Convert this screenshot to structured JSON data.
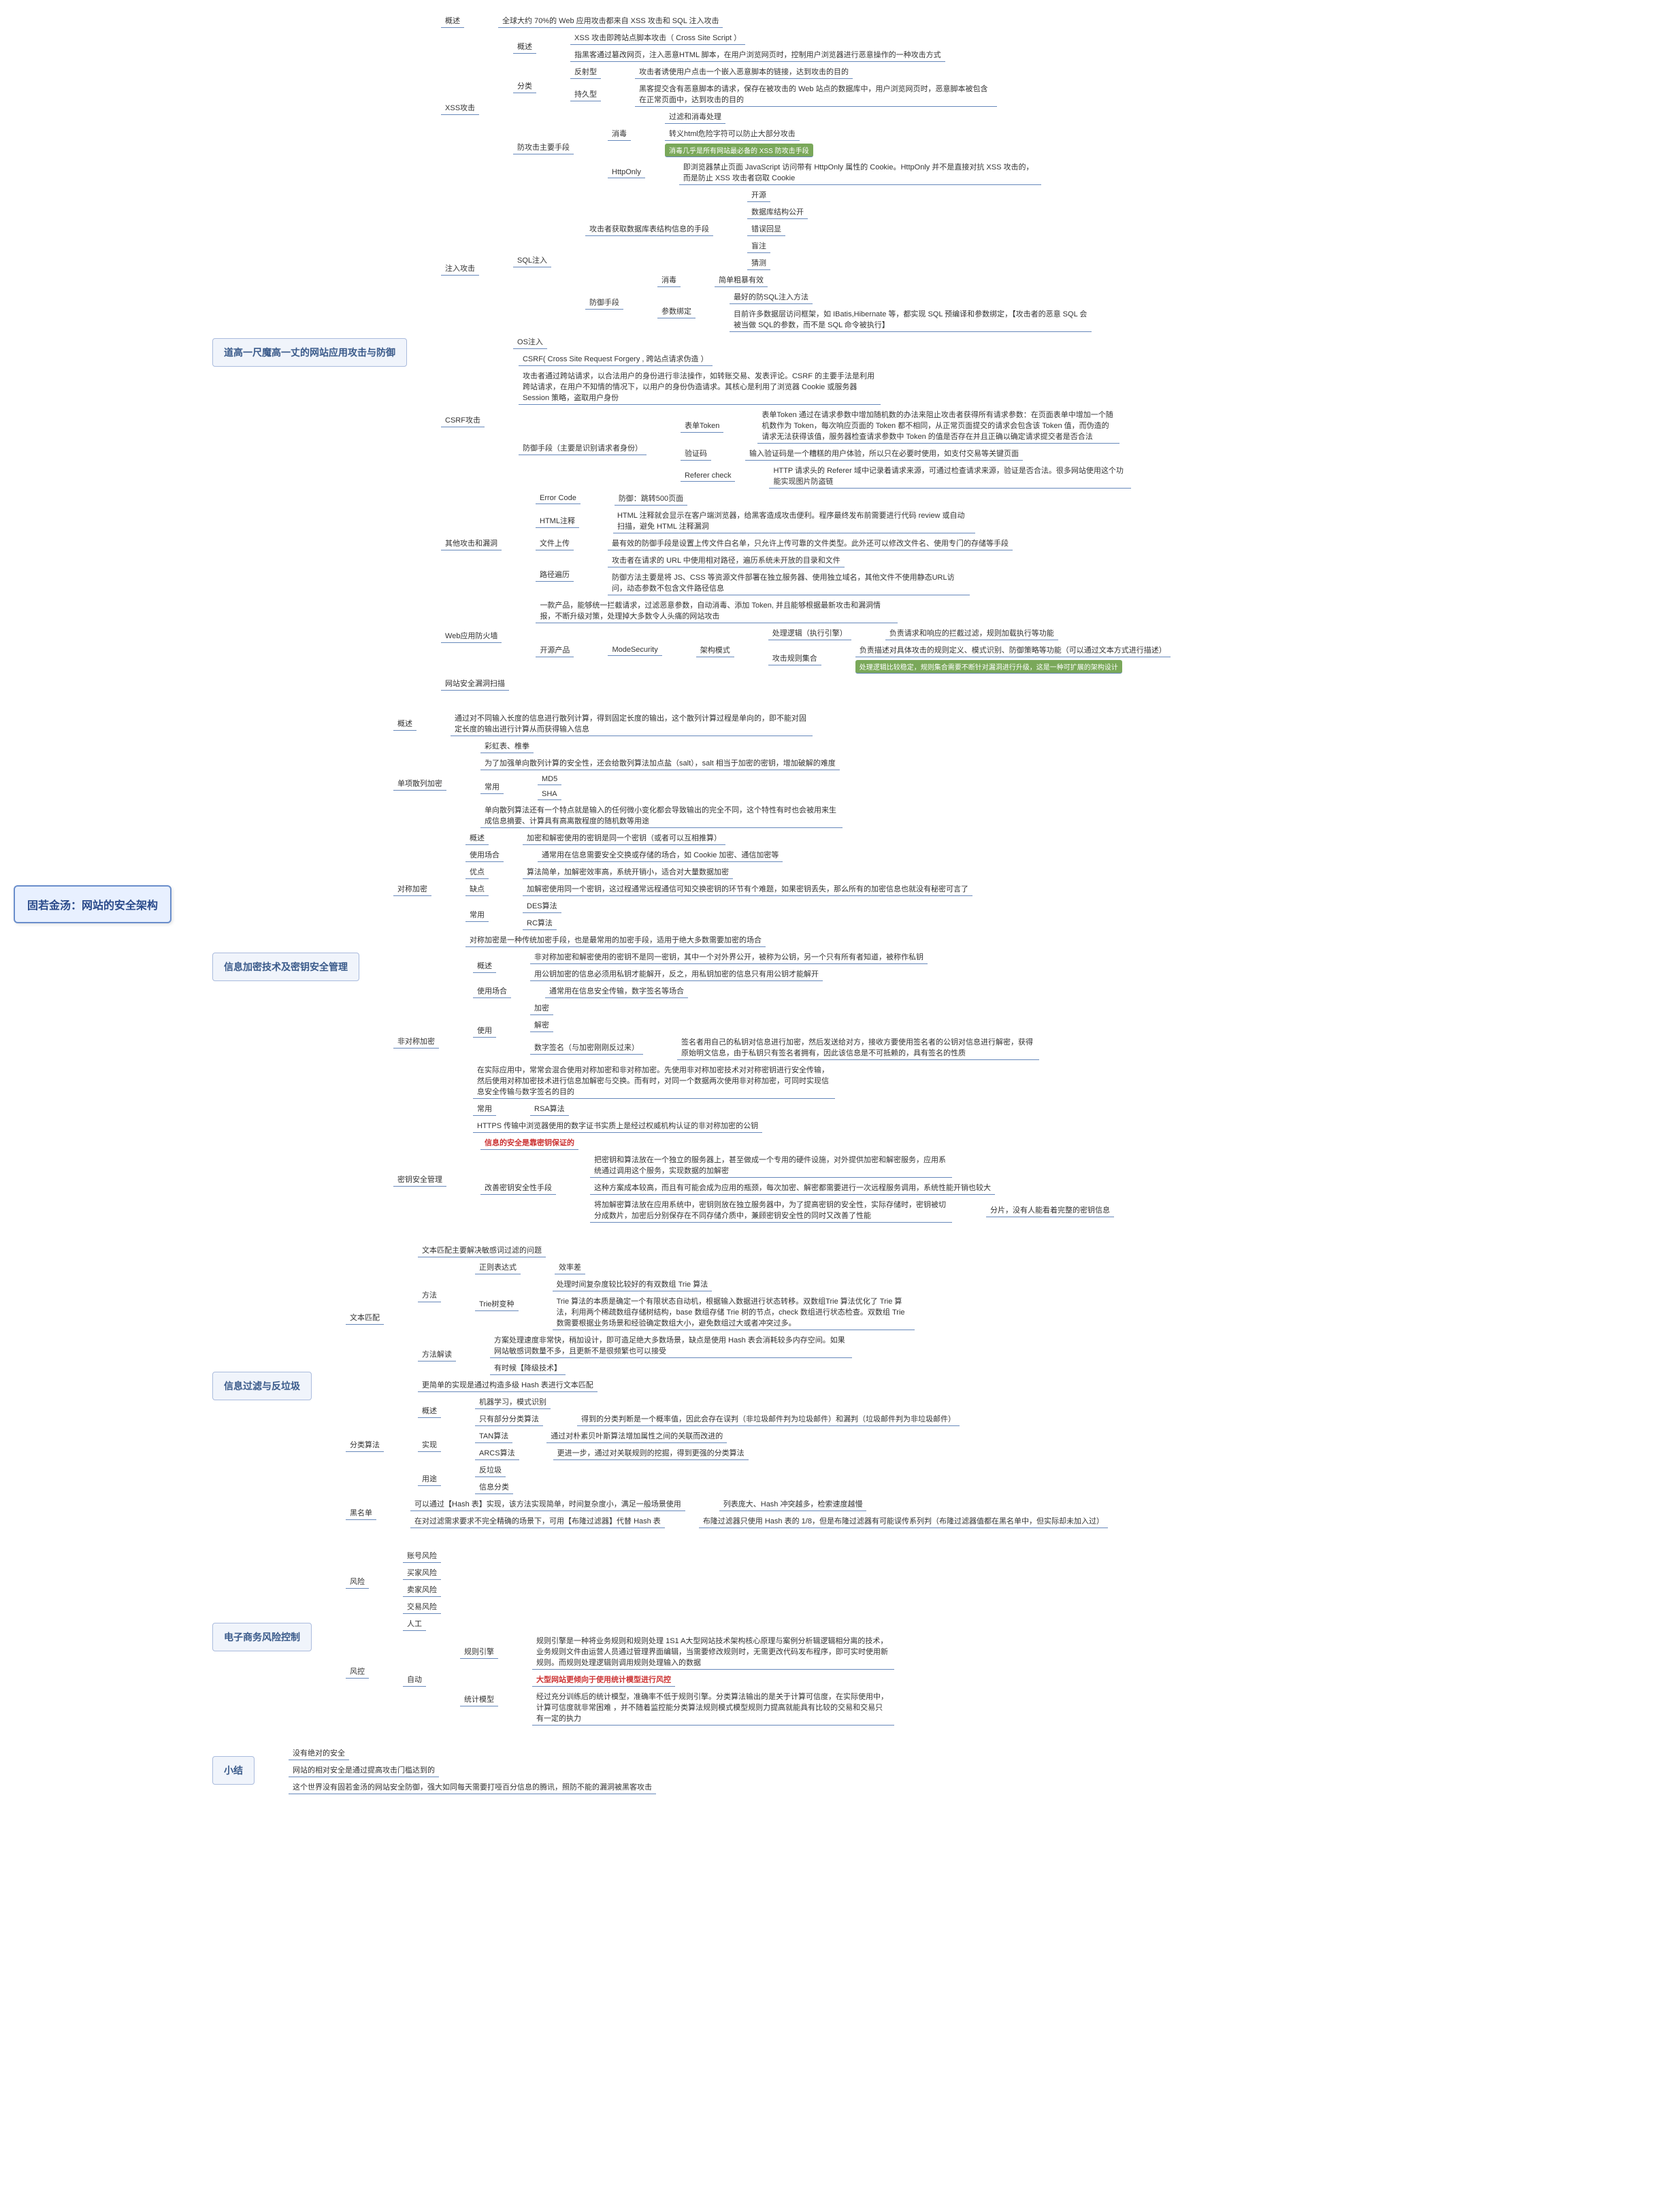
{
  "root": "固若金汤：网站的安全架构",
  "colors": {
    "root_border": "#6a8ecb",
    "root_bg": "#e8f0ff",
    "section_border": "#aabbdd",
    "section_bg": "#f0f4fb",
    "line": "#6688bb",
    "green_tag": "#7aa85a",
    "red_text": "#cc3333"
  },
  "sections": [
    {
      "title": "道高一尺魔高一丈的网站应用攻击与防御",
      "children": [
        {
          "label": "概述",
          "children": [
            {
              "label": "全球大约 70%的 Web 应用攻击都来自 XSS 攻击和 SQL 注入攻击"
            }
          ]
        },
        {
          "label": "XSS攻击",
          "children": [
            {
              "label": "概述",
              "children": [
                {
                  "label": "XSS 攻击即跨站点脚本攻击（ Cross Site Script ）"
                },
                {
                  "label": "指黑客通过篡改网页，注入恶意HTML 脚本，在用户浏览网页时，控制用户浏览器进行恶意操作的一种攻击方式"
                }
              ]
            },
            {
              "label": "分类",
              "children": [
                {
                  "label": "反射型",
                  "children": [
                    {
                      "label": "攻击者诱使用户点击一个嵌入恶意脚本的链接，达到攻击的目的"
                    }
                  ]
                },
                {
                  "label": "持久型",
                  "children": [
                    {
                      "label": "黑客提交含有恶意脚本的请求，保存在被攻击的 Web 站点的数据库中，用户浏览网页时，恶意脚本被包含在正常页面中，达到攻击的目的"
                    }
                  ]
                }
              ]
            },
            {
              "label": "防攻击主要手段",
              "children": [
                {
                  "label": "消毒",
                  "children": [
                    {
                      "label": "过滤和消毒处理"
                    },
                    {
                      "label": "转义html危险字符可以防止大部分攻击"
                    },
                    {
                      "label": "消毒几乎是所有网站最必备的 XSS 防攻击手段",
                      "class": "highlight-green"
                    }
                  ]
                },
                {
                  "label": "HttpOnly",
                  "children": [
                    {
                      "label": "即浏览器禁止页面 JavaScript 访问带有 HttpOnly 属性的 Cookie。HttpOnly 并不是直接对抗 XSS 攻击的，而是防止 XSS 攻击者窃取 Cookie"
                    }
                  ]
                }
              ]
            }
          ]
        },
        {
          "label": "注入攻击",
          "children": [
            {
              "label": "SQL注入",
              "children": [
                {
                  "label": "攻击者获取数据库表结构信息的手段",
                  "children": [
                    {
                      "label": "开源"
                    },
                    {
                      "label": "数据库结构公开"
                    },
                    {
                      "label": "错误回显"
                    },
                    {
                      "label": "盲注"
                    },
                    {
                      "label": "猜测"
                    }
                  ]
                },
                {
                  "label": "防御手段",
                  "children": [
                    {
                      "label": "消毒",
                      "children": [
                        {
                          "label": "简单粗暴有效"
                        }
                      ]
                    },
                    {
                      "label": "参数绑定",
                      "children": [
                        {
                          "label": "最好的防SQL注入方法"
                        },
                        {
                          "label": "目前许多数据层访问框架，如 IBatis,Hibernate 等，都实现 SQL 预编译和参数绑定，【攻击者的恶意 SQL 会被当做 SQL的参数，而不是 SQL 命令被执行】"
                        }
                      ]
                    }
                  ]
                }
              ]
            },
            {
              "label": "OS注入"
            }
          ]
        },
        {
          "label": "CSRF攻击",
          "children": [
            {
              "label": "CSRF( Cross Site Request Forgery , 跨站点请求伪造 ）"
            },
            {
              "label": "攻击者通过跨站请求，以合法用户的身份进行非法操作，如转账交易、发表评论。CSRF 的主要手法是利用跨站请求，在用户不知情的情况下，以用户的身份伪造请求。其核心是利用了浏览器 Cookie 或服务器 Session 策略，盗取用户身份"
            },
            {
              "label": "防御手段（主要是识别请求者身份）",
              "children": [
                {
                  "label": "表单Token",
                  "children": [
                    {
                      "label": "表单Token 通过在请求参数中增加随机数的办法来阻止攻击者获得所有请求参数：在页面表单中增加一个随机数作为 Token，每次响应页面的 Token 都不相同，从正常页面提交的请求会包含该 Token 值，而伪造的请求无法获得该值，服务器检查请求参数中 Token 的值是否存在并且正确以确定请求提交者是否合法"
                    }
                  ]
                },
                {
                  "label": "验证码",
                  "children": [
                    {
                      "label": "输入验证码是一个糟糕的用户体验，所以只在必要时使用，如支付交易等关键页面"
                    }
                  ]
                },
                {
                  "label": "Referer check",
                  "children": [
                    {
                      "label": "HTTP 请求头的 Referer 域中记录着请求来源，可通过检查请求来源，验证是否合法。很多网站使用这个功能实现图片防盗链"
                    }
                  ]
                }
              ]
            }
          ]
        },
        {
          "label": "其他攻击和漏洞",
          "children": [
            {
              "label": "Error Code",
              "children": [
                {
                  "label": "防御：跳转500页面"
                }
              ]
            },
            {
              "label": "HTML注释",
              "children": [
                {
                  "label": "HTML 注释就会显示在客户端浏览器，给黑客造成攻击便利。程序最终发布前需要进行代码 review 或自动扫描，避免 HTML 注释漏洞"
                }
              ]
            },
            {
              "label": "文件上传",
              "children": [
                {
                  "label": "最有效的防御手段是设置上传文件白名单，只允许上传可靠的文件类型。此外还可以修改文件名、使用专门的存储等手段"
                }
              ]
            },
            {
              "label": "路径遍历",
              "children": [
                {
                  "label": "攻击者在请求的 URL 中使用相对路径，遍历系统未开放的目录和文件"
                },
                {
                  "label": "防御方法主要是将 JS、CSS 等资源文件部署在独立服务器、使用独立域名，其他文件不使用静态URL访问，动态参数不包含文件路径信息"
                }
              ]
            }
          ]
        },
        {
          "label": "Web应用防火墙",
          "children": [
            {
              "label": "一款产品，能够统一拦截请求，过滤恶意参数，自动消毒、添加 Token, 并且能够根据最新攻击和漏洞情报，不断升级对策，处理掉大多数令人头痛的网站攻击"
            },
            {
              "label": "开源产品",
              "children": [
                {
                  "label": "ModeSecurity",
                  "children": [
                    {
                      "label": "架构模式",
                      "children": [
                        {
                          "label": "处理逻辑（执行引擎）",
                          "children": [
                            {
                              "label": "负责请求和响应的拦截过滤，规则加载执行等功能"
                            }
                          ]
                        },
                        {
                          "label": "攻击规则集合",
                          "children": [
                            {
                              "label": "负责描述对具体攻击的规则定义、模式识别、防御策略等功能（可以通过文本方式进行描述）"
                            },
                            {
                              "label": "处理逻辑比较稳定，规则集合需要不断针对漏洞进行升级，这是一种可扩展的架构设计",
                              "class": "highlight-green"
                            }
                          ]
                        }
                      ]
                    }
                  ]
                }
              ]
            }
          ]
        },
        {
          "label": "网站安全漏洞扫描"
        }
      ]
    },
    {
      "title": "信息加密技术及密钥安全管理",
      "children": [
        {
          "label": "概述",
          "children": [
            {
              "label": "通过对不同输入长度的信息进行散列计算，得到固定长度的输出，这个散列计算过程是单向的，即不能对固定长度的输出进行计算从而获得输入信息"
            }
          ]
        },
        {
          "label": "单项散列加密",
          "children": [
            {
              "label": "彩虹表、椎拳"
            },
            {
              "label": "为了加强单向散列计算的安全性，还会给散列算法加点盐（salt），salt 相当于加密的密钥，增加破解的难度"
            },
            {
              "label": "常用",
              "children": [
                {
                  "label": "MD5"
                },
                {
                  "label": "SHA"
                }
              ]
            },
            {
              "label": "单向散列算法还有一个特点就是输入的任何微小变化都会导致输出的完全不同，这个特性有时也会被用来生成信息摘要、计算具有高离散程度的随机数等用途"
            }
          ]
        },
        {
          "label": "对称加密",
          "children": [
            {
              "label": "概述",
              "children": [
                {
                  "label": "加密和解密使用的密钥是同一个密钥（或者可以互相推算）"
                }
              ]
            },
            {
              "label": "使用场合",
              "children": [
                {
                  "label": "通常用在信息需要安全交换或存储的场合，如 Cookie 加密、通信加密等"
                }
              ]
            },
            {
              "label": "优点",
              "children": [
                {
                  "label": "算法简单，加解密效率高，系统开销小，适合对大量数据加密"
                }
              ]
            },
            {
              "label": "缺点",
              "children": [
                {
                  "label": "加解密使用同一个密钥，这过程通常远程通信可知交换密钥的环节有个难题，如果密钥丢失，那么所有的加密信息也就没有秘密可言了"
                }
              ]
            },
            {
              "label": "常用",
              "children": [
                {
                  "label": "DES算法"
                },
                {
                  "label": "RC算法"
                }
              ]
            },
            {
              "label": "对称加密是一种传统加密手段，也是最常用的加密手段，适用于绝大多数需要加密的场合"
            }
          ]
        },
        {
          "label": "非对称加密",
          "children": [
            {
              "label": "概述",
              "children": [
                {
                  "label": "非对称加密和解密使用的密钥不是同一密钥，其中一个对外界公开，被称为公钥，另一个只有所有者知道，被称作私钥"
                },
                {
                  "label": "用公钥加密的信息必须用私钥才能解开，反之，用私钥加密的信息只有用公钥才能解开"
                }
              ]
            },
            {
              "label": "使用场合",
              "children": [
                {
                  "label": "通常用在信息安全传输，数字签名等场合"
                }
              ]
            },
            {
              "label": "使用",
              "children": [
                {
                  "label": "加密"
                },
                {
                  "label": "解密"
                },
                {
                  "label": "数字签名（与加密刚刚反过来）",
                  "children": [
                    {
                      "label": "签名者用自己的私钥对信息进行加密，然后发送给对方，接收方要使用签名者的公钥对信息进行解密，获得原始明文信息，由于私钥只有签名者拥有，因此该信息是不可抵赖的，具有签名的性质"
                    }
                  ]
                }
              ]
            },
            {
              "label": "在实际应用中，常常会混合使用对称加密和非对称加密。先使用非对称加密技术对对称密钥进行安全传输，然后使用对称加密技术进行信息加解密与交换。而有时，对同一个数据两次使用非对称加密，可同时实现信息安全传输与数字签名的目的"
            },
            {
              "label": "常用",
              "children": [
                {
                  "label": "RSA算法"
                }
              ]
            },
            {
              "label": "HTTPS 传输中浏览器使用的数字证书实质上是经过权威机构认证的非对称加密的公钥"
            }
          ]
        },
        {
          "label": "密钥安全管理",
          "children": [
            {
              "label": "信息的安全是靠密钥保证的",
              "class": "highlight-red"
            },
            {
              "label": "改善密钥安全性手段",
              "children": [
                {
                  "label": "把密钥和算法放在一个独立的服务器上，甚至做成一个专用的硬件设施，对外提供加密和解密服务，应用系统通过调用这个服务，实现数据的加解密"
                },
                {
                  "label": "这种方案成本较高，而且有可能会成为应用的瓶颈，每次加密、解密都需要进行一次远程服务调用，系统性能开销也较大"
                },
                {
                  "label": "将加解密算法放在应用系统中，密钥则放在独立服务器中，为了提高密钥的安全性，实际存储时，密钥被切分成数片，加密后分别保存在不同存储介质中，兼顾密钥安全性的同时又改善了性能",
                  "children": [
                    {
                      "label": "分片，没有人能看着完整的密钥信息"
                    }
                  ]
                }
              ]
            }
          ]
        }
      ]
    },
    {
      "title": "信息过滤与反垃圾",
      "children": [
        {
          "label": "文本匹配",
          "children": [
            {
              "label": "文本匹配主要解决敏感词过滤的问题"
            },
            {
              "label": "方法",
              "children": [
                {
                  "label": "正则表达式",
                  "children": [
                    {
                      "label": "效率差"
                    }
                  ]
                },
                {
                  "label": "Trie树变种",
                  "children": [
                    {
                      "label": "处理时间复杂度较比较好的有双数组 Trie 算法"
                    },
                    {
                      "label": "Trie 算法的本质是确定一个有限状态自动机，根据输入数据进行状态转移。双数组Trie 算法优化了 Trie 算法，利用两个稀疏数组存储树结构，base 数组存储 Trie 树的节点，check 数组进行状态检查。双数组 Trie 数需要根据业务场景和经验确定数组大小，避免数组过大或者冲突过多。"
                    }
                  ]
                }
              ]
            },
            {
              "label": "方法解读",
              "children": [
                {
                  "label": "方案处理速度非常快，稍加设计，即可造足绝大多数场景，缺点是使用 Hash 表会消耗较多内存空间。如果网站敏感词数量不多，且更新不是很频繁也可以接受"
                },
                {
                  "label": "有时候【降级技术】"
                }
              ]
            },
            {
              "label": "更简单的实现是通过构造多级 Hash 表进行文本匹配"
            }
          ]
        },
        {
          "label": "分类算法",
          "children": [
            {
              "label": "概述",
              "children": [
                {
                  "label": "机器学习，模式识别"
                },
                {
                  "label": "只有部分分类算法",
                  "children": [
                    {
                      "label": "得到的分类判断是一个概率值，因此会存在误判（非垃圾邮件判为垃圾邮件）和漏判（垃圾邮件判为非垃圾邮件）"
                    }
                  ]
                }
              ]
            },
            {
              "label": "实现",
              "children": [
                {
                  "label": "TAN算法",
                  "children": [
                    {
                      "label": "通过对朴素贝叶斯算法增加属性之间的关联而改进的"
                    }
                  ]
                },
                {
                  "label": "ARCS算法",
                  "children": [
                    {
                      "label": "更进一步，通过对关联规则的挖掘，得到更强的分类算法"
                    }
                  ]
                }
              ]
            },
            {
              "label": "用途",
              "children": [
                {
                  "label": "反垃圾"
                },
                {
                  "label": "信息分类"
                }
              ]
            }
          ]
        },
        {
          "label": "黑名单",
          "children": [
            {
              "label": "可以通过【Hash 表】实现，该方法实现简单，时间复杂度小，满足一般场景使用",
              "children": [
                {
                  "label": "列表庞大、Hash 冲突越多，检索速度越慢"
                }
              ]
            },
            {
              "label": "在对过滤需求要求不完全精确的场景下，可用【布隆过滤器】代替 Hash 表",
              "children": [
                {
                  "label": "布隆过滤器只使用 Hash 表的 1/8，但是布隆过滤器有可能误传系列判（布隆过滤器值都在黑名单中，但实际却未加入过）"
                }
              ]
            }
          ]
        }
      ]
    },
    {
      "title": "电子商务风险控制",
      "children": [
        {
          "label": "风险",
          "children": [
            {
              "label": "账号风险"
            },
            {
              "label": "买家风险"
            },
            {
              "label": "卖家风险"
            },
            {
              "label": "交易风险"
            }
          ]
        },
        {
          "label": "风控",
          "children": [
            {
              "label": "人工"
            },
            {
              "label": "自动",
              "children": [
                {
                  "label": "规则引擎",
                  "children": [
                    {
                      "label": "规则引擎是一种将业务规则和规则处理 1S1 A大型网站技术架构核心原理与案例分析辑逻辑相分离的技术，业务规则文件由运营人员通过管理界面编辑，当需要修改规则时，无需更改代码发布程序，即可实时使用新规则。而规则处理逻辑则调用规则处理输入的数据"
                    }
                  ]
                },
                {
                  "label": "统计模型",
                  "children": [
                    {
                      "label": "大型网站更倾向于使用统计模型进行风控",
                      "class": "highlight-red"
                    },
                    {
                      "label": "经过充分训练后的统计模型，准确率不低于规则引擎。分类算法输出的是关于计算可信度，在实际使用中，计算可信度就非常困难 ，并不随着监控能分类算法规则模式模型规则力提高就能具有比较的交易和交易只有一定的执力"
                    }
                  ]
                }
              ]
            }
          ]
        }
      ]
    },
    {
      "title": "小结",
      "children": [
        {
          "label": "没有绝对的安全"
        },
        {
          "label": "网站的相对安全是通过提高攻击门槛达到的"
        },
        {
          "label": "这个世界没有固若金汤的网站安全防御，强大如同每天需要打哑百分信息的腾讯，照防不能的漏洞被黑客攻击"
        }
      ]
    }
  ]
}
